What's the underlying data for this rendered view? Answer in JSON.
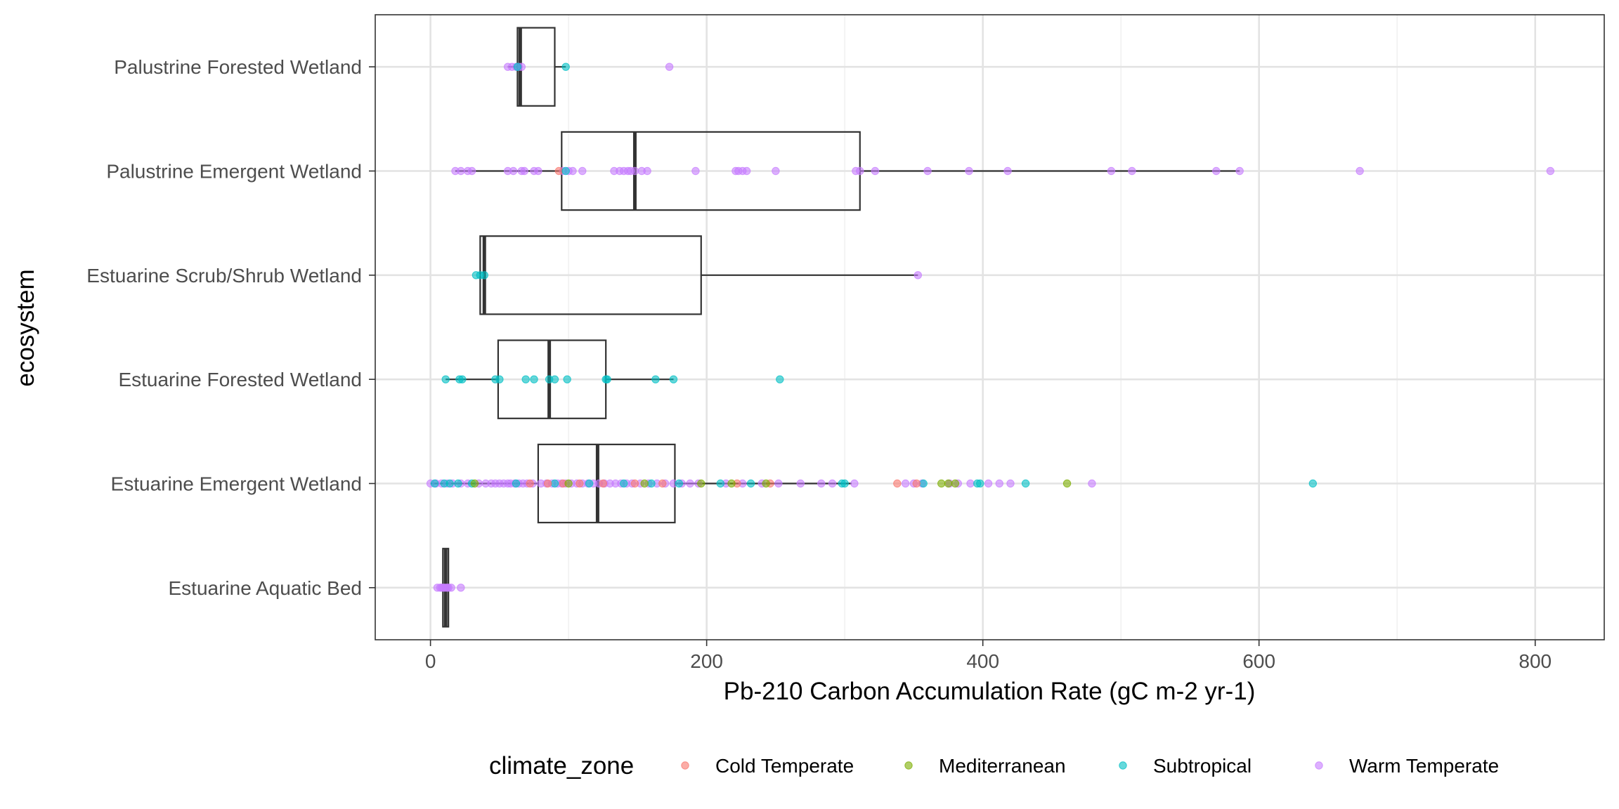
{
  "chart_data": {
    "type": "box",
    "orientation": "horizontal",
    "title": "",
    "xlabel": "Pb-210 Carbon Accumulation Rate (gC m-2 yr-1)",
    "ylabel": "ecosystem",
    "xlim": [
      -40,
      850
    ],
    "x_ticks": [
      0,
      200,
      400,
      600,
      800
    ],
    "x_tick_labels": [
      "0",
      "200",
      "400",
      "600",
      "800"
    ],
    "x_minor_ticks": [
      100,
      300,
      500,
      700
    ],
    "grid": true,
    "theme": "bw",
    "legend": {
      "title": "climate_zone",
      "position": "bottom",
      "entries": [
        "Cold Temperate",
        "Mediterranean",
        "Subtropical",
        "Warm Temperate"
      ]
    },
    "colors": {
      "Cold Temperate": "#F8766D",
      "Mediterranean": "#7CAE00",
      "Subtropical": "#00BFC4",
      "Warm Temperate": "#C77CFF"
    },
    "categories": [
      "Estuarine Aquatic Bed",
      "Estuarine Emergent Wetland",
      "Estuarine Forested Wetland",
      "Estuarine Scrub/Shrub Wetland",
      "Palustrine Emergent Wetland",
      "Palustrine Forested Wetland"
    ],
    "boxes": [
      {
        "category": "Estuarine Aquatic Bed",
        "whisker_low": 9,
        "q1": 9,
        "median": 11,
        "q3": 13,
        "whisker_high": 13
      },
      {
        "category": "Estuarine Emergent Wetland",
        "whisker_low": 0,
        "q1": 78,
        "median": 121,
        "q3": 177,
        "whisker_high": 305
      },
      {
        "category": "Estuarine Forested Wetland",
        "whisker_low": 11,
        "q1": 49,
        "median": 86,
        "q3": 127,
        "whisker_high": 176
      },
      {
        "category": "Estuarine Scrub/Shrub Wetland",
        "whisker_low": 36,
        "q1": 36,
        "median": 39,
        "q3": 196,
        "whisker_high": 353
      },
      {
        "category": "Palustrine Emergent Wetland",
        "whisker_low": 18,
        "q1": 95,
        "median": 148,
        "q3": 311,
        "whisker_high": 586
      },
      {
        "category": "Palustrine Forested Wetland",
        "whisker_low": 56,
        "q1": 63,
        "median": 65,
        "q3": 90,
        "whisker_high": 98
      }
    ],
    "points": [
      {
        "category": "Palustrine Forested Wetland",
        "zone": "Warm Temperate",
        "x": [
          56,
          59,
          62,
          64,
          66,
          173
        ]
      },
      {
        "category": "Palustrine Forested Wetland",
        "zone": "Subtropical",
        "x": [
          63,
          98
        ]
      },
      {
        "category": "Palustrine Emergent Wetland",
        "zone": "Warm Temperate",
        "x": [
          18,
          22,
          27,
          30,
          56,
          60,
          66,
          68,
          75,
          78,
          96,
          100,
          103,
          110,
          133,
          137,
          140,
          143,
          145,
          148,
          153,
          157,
          192,
          221,
          223,
          226,
          229,
          250,
          308,
          311,
          322,
          360,
          390,
          418,
          493,
          508,
          569,
          586,
          673,
          811
        ]
      },
      {
        "category": "Palustrine Emergent Wetland",
        "zone": "Cold Temperate",
        "x": [
          93
        ]
      },
      {
        "category": "Palustrine Emergent Wetland",
        "zone": "Subtropical",
        "x": [
          98
        ]
      },
      {
        "category": "Estuarine Scrub/Shrub Wetland",
        "zone": "Subtropical",
        "x": [
          33,
          36,
          39
        ]
      },
      {
        "category": "Estuarine Scrub/Shrub Wetland",
        "zone": "Warm Temperate",
        "x": [
          353
        ]
      },
      {
        "category": "Estuarine Forested Wetland",
        "zone": "Subtropical",
        "x": [
          11,
          21,
          23,
          47,
          50,
          69,
          75,
          86,
          90,
          99,
          127,
          128,
          163,
          176,
          253
        ]
      },
      {
        "category": "Estuarine Emergent Wetland",
        "zone": "Warm Temperate",
        "x": [
          0,
          4,
          8,
          12,
          16,
          22,
          27,
          35,
          40,
          44,
          47,
          50,
          53,
          56,
          58,
          61,
          64,
          67,
          70,
          74,
          80,
          84,
          88,
          92,
          95,
          98,
          102,
          106,
          110,
          114,
          118,
          122,
          126,
          130,
          134,
          138,
          142,
          146,
          152,
          158,
          164,
          170,
          176,
          182,
          188,
          194,
          214,
          226,
          240,
          252,
          268,
          283,
          291,
          307,
          344,
          350,
          356,
          376,
          382,
          391,
          404,
          412,
          420,
          479
        ]
      },
      {
        "category": "Estuarine Emergent Wetland",
        "zone": "Subtropical",
        "x": [
          3,
          10,
          14,
          20,
          30,
          62,
          90,
          115,
          140,
          160,
          180,
          210,
          232,
          298,
          300,
          357,
          396,
          398,
          431,
          639
        ]
      },
      {
        "category": "Estuarine Emergent Wetland",
        "zone": "Cold Temperate",
        "x": [
          72,
          85,
          96,
          108,
          125,
          148,
          168,
          222,
          246,
          338,
          352
        ]
      },
      {
        "category": "Estuarine Emergent Wetland",
        "zone": "Mediterranean",
        "x": [
          32,
          100,
          155,
          196,
          218,
          243,
          370,
          375,
          380,
          461
        ]
      },
      {
        "category": "Estuarine Aquatic Bed",
        "zone": "Warm Temperate",
        "x": [
          5,
          7,
          8,
          9,
          10,
          11,
          12,
          13,
          15,
          22
        ]
      }
    ]
  }
}
